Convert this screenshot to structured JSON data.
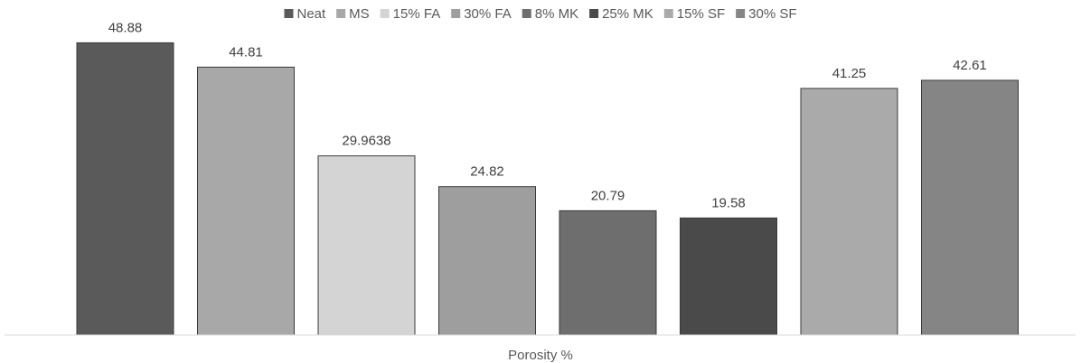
{
  "chart_data": {
    "type": "bar",
    "title": "",
    "xlabel": "Porosity %",
    "ylabel": "",
    "ylim": [
      0,
      50
    ],
    "grid": false,
    "legend_position": "top",
    "categories": [
      "Porosity %"
    ],
    "series": [
      {
        "name": "Neat",
        "values": [
          48.88
        ],
        "label": "48.88",
        "color": "#5a5a5a"
      },
      {
        "name": "MS",
        "values": [
          44.81
        ],
        "label": "44.81",
        "color": "#a8a8a8"
      },
      {
        "name": "15% FA",
        "values": [
          29.9638
        ],
        "label": "29.9638",
        "color": "#d4d4d4"
      },
      {
        "name": "30% FA",
        "values": [
          24.82
        ],
        "label": "24.82",
        "color": "#9e9e9e"
      },
      {
        "name": "8% MK",
        "values": [
          20.79
        ],
        "label": "20.79",
        "color": "#6e6e6e"
      },
      {
        "name": "25% MK",
        "values": [
          19.58
        ],
        "label": "19.58",
        "color": "#4a4a4a"
      },
      {
        "name": "15% SF",
        "values": [
          41.25
        ],
        "label": "41.25",
        "color": "#aaaaaa"
      },
      {
        "name": "30% SF",
        "values": [
          42.61
        ],
        "label": "42.61",
        "color": "#858585"
      }
    ]
  }
}
